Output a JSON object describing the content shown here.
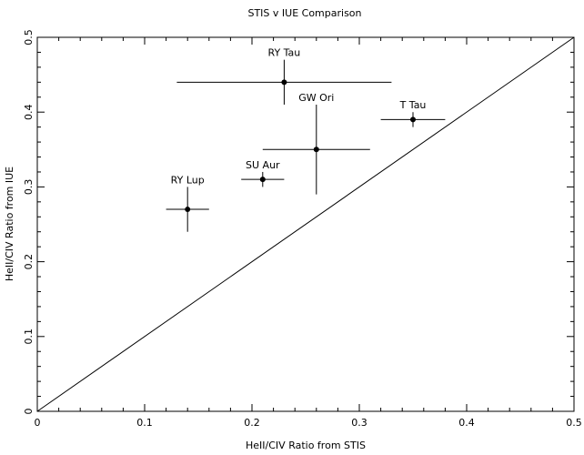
{
  "chart_data": {
    "type": "scatter",
    "title": "STIS v IUE Comparison",
    "xlabel": "HeII/CIV Ratio from STIS",
    "ylabel": "HeII/CIV Ratio from IUE",
    "xlim": [
      0,
      0.5
    ],
    "ylim": [
      0,
      0.5
    ],
    "x_ticks": [
      0,
      0.1,
      0.2,
      0.3,
      0.4,
      0.5
    ],
    "x_tick_labels": [
      "0",
      "0.1",
      "0.2",
      "0.3",
      "0.4",
      "0.5"
    ],
    "y_ticks": [
      0,
      0.1,
      0.2,
      0.3,
      0.4,
      0.5
    ],
    "y_tick_labels": [
      "0",
      "0.1",
      "0.2",
      "0.3",
      "0.4",
      "0.5"
    ],
    "grid": false,
    "reference_line": {
      "x": [
        0,
        0.5
      ],
      "y": [
        0,
        0.5
      ]
    },
    "points": [
      {
        "label": "RY Tau",
        "x": 0.23,
        "y": 0.44,
        "x_err": [
          0.13,
          0.33
        ],
        "y_err": [
          0.41,
          0.47
        ]
      },
      {
        "label": "T Tau",
        "x": 0.35,
        "y": 0.39,
        "x_err": [
          0.32,
          0.38
        ],
        "y_err": [
          0.38,
          0.4
        ]
      },
      {
        "label": "GW Ori",
        "x": 0.26,
        "y": 0.35,
        "x_err": [
          0.21,
          0.31
        ],
        "y_err": [
          0.29,
          0.41
        ]
      },
      {
        "label": "SU Aur",
        "x": 0.21,
        "y": 0.31,
        "x_err": [
          0.19,
          0.23
        ],
        "y_err": [
          0.3,
          0.32
        ]
      },
      {
        "label": "RY Lup",
        "x": 0.14,
        "y": 0.27,
        "x_err": [
          0.12,
          0.16
        ],
        "y_err": [
          0.24,
          0.3
        ]
      }
    ]
  }
}
